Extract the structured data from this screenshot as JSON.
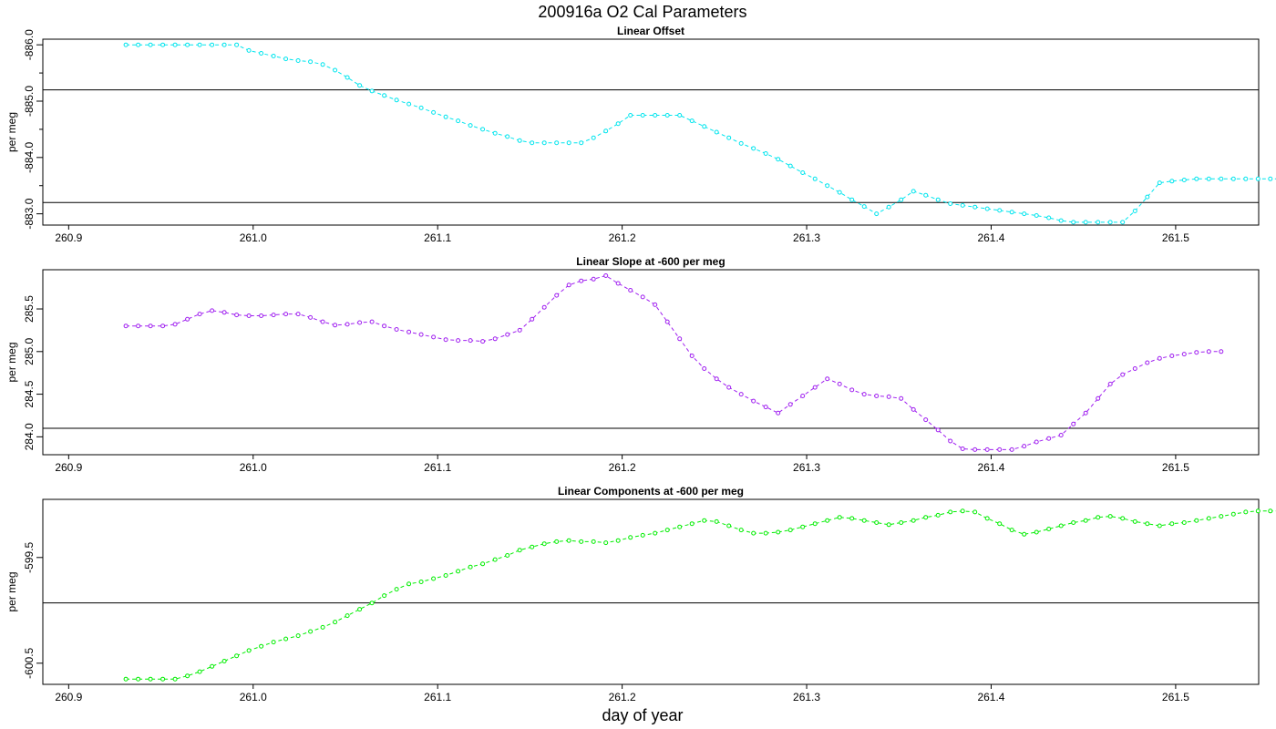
{
  "title": "200916a   O2 Cal Parameters",
  "xlabel": "day of year",
  "x_ticks": [
    "260.9",
    "261.0",
    "261.1",
    "261.2",
    "261.3",
    "261.4",
    "261.5"
  ],
  "chart_data": [
    {
      "type": "line",
      "title": "Linear Offset",
      "ylabel": "per meg",
      "color": "#00e5ee",
      "y_orientation": "inverted",
      "xlim": [
        260.886,
        261.545
      ],
      "ylim": [
        -886.1,
        -882.8
      ],
      "y_ticks": [
        -883.0,
        -884.0,
        -885.0,
        -886.0
      ],
      "y_tick_labels": [
        "-883.0",
        "-884.0",
        "-885.0",
        "-886.0"
      ],
      "reference_lines": [
        -883.2,
        -885.2
      ],
      "x_start": 260.931,
      "x_step": 0.00667,
      "values": [
        -886.0,
        -886.0,
        -886.0,
        -886.0,
        -886.0,
        -886.0,
        -886.0,
        -886.0,
        -886.0,
        -886.0,
        -885.9,
        -885.85,
        -885.8,
        -885.75,
        -885.72,
        -885.7,
        -885.65,
        -885.55,
        -885.42,
        -885.28,
        -885.18,
        -885.1,
        -885.02,
        -884.95,
        -884.88,
        -884.8,
        -884.72,
        -884.65,
        -884.57,
        -884.5,
        -884.43,
        -884.37,
        -884.3,
        -884.26,
        -884.26,
        -884.26,
        -884.26,
        -884.26,
        -884.35,
        -884.47,
        -884.6,
        -884.75,
        -884.75,
        -884.75,
        -884.75,
        -884.75,
        -884.65,
        -884.55,
        -884.45,
        -884.35,
        -884.25,
        -884.16,
        -884.07,
        -883.97,
        -883.85,
        -883.73,
        -883.62,
        -883.5,
        -883.38,
        -883.25,
        -883.13,
        -883.0,
        -883.12,
        -883.25,
        -883.4,
        -883.33,
        -883.25,
        -883.18,
        -883.15,
        -883.12,
        -883.09,
        -883.06,
        -883.03,
        -883.0,
        -882.97,
        -882.93,
        -882.88,
        -882.85,
        -882.85,
        -882.85,
        -882.85,
        -882.85,
        -883.05,
        -883.3,
        -883.55,
        -883.58,
        -883.6,
        -883.62,
        -883.62,
        -883.62,
        -883.62,
        -883.62,
        -883.62,
        -883.62,
        -883.62
      ]
    },
    {
      "type": "line",
      "title": "Linear Slope at -600 per meg",
      "ylabel": "per meg",
      "color": "#a020f0",
      "xlim": [
        260.886,
        261.545
      ],
      "ylim": [
        283.79,
        285.96
      ],
      "y_ticks": [
        284.0,
        284.5,
        285.0,
        285.5
      ],
      "y_tick_labels": [
        "284.0",
        "284.5",
        "285.0",
        "285.5"
      ],
      "reference_lines": [
        284.1
      ],
      "x_start": 260.931,
      "x_step": 0.00667,
      "values": [
        285.3,
        285.3,
        285.3,
        285.3,
        285.32,
        285.38,
        285.44,
        285.48,
        285.46,
        285.43,
        285.42,
        285.42,
        285.43,
        285.44,
        285.44,
        285.4,
        285.35,
        285.31,
        285.32,
        285.34,
        285.35,
        285.3,
        285.26,
        285.23,
        285.2,
        285.17,
        285.14,
        285.13,
        285.13,
        285.12,
        285.15,
        285.2,
        285.25,
        285.38,
        285.52,
        285.66,
        285.78,
        285.83,
        285.85,
        285.89,
        285.8,
        285.72,
        285.64,
        285.55,
        285.35,
        285.15,
        284.95,
        284.8,
        284.68,
        284.58,
        284.5,
        284.42,
        284.35,
        284.28,
        284.38,
        284.48,
        284.58,
        284.68,
        284.62,
        284.55,
        284.5,
        284.48,
        284.47,
        284.45,
        284.32,
        284.2,
        284.08,
        283.95,
        283.86,
        283.85,
        283.85,
        283.85,
        283.85,
        283.89,
        283.94,
        283.98,
        284.02,
        284.15,
        284.28,
        284.45,
        284.62,
        284.73,
        284.8,
        284.87,
        284.92,
        284.95,
        284.97,
        284.99,
        285.0,
        285.0
      ]
    },
    {
      "type": "line",
      "title": "Linear Components at -600 per meg",
      "ylabel": "per meg",
      "color": "#00ee00",
      "xlim": [
        260.886,
        261.545
      ],
      "ylim": [
        -600.7,
        -598.95
      ],
      "y_ticks": [
        -599.5,
        -600.5
      ],
      "y_tick_labels": [
        "-599.5",
        "-600.5"
      ],
      "reference_lines": [
        -599.93
      ],
      "x_start": 260.931,
      "x_step": 0.00667,
      "values": [
        -600.65,
        -600.65,
        -600.65,
        -600.65,
        -600.65,
        -600.62,
        -600.58,
        -600.53,
        -600.48,
        -600.43,
        -600.38,
        -600.34,
        -600.3,
        -600.27,
        -600.24,
        -600.2,
        -600.16,
        -600.11,
        -600.05,
        -599.99,
        -599.93,
        -599.86,
        -599.8,
        -599.75,
        -599.73,
        -599.7,
        -599.67,
        -599.63,
        -599.59,
        -599.56,
        -599.52,
        -599.48,
        -599.43,
        -599.4,
        -599.37,
        -599.35,
        -599.34,
        -599.35,
        -599.35,
        -599.36,
        -599.34,
        -599.31,
        -599.29,
        -599.27,
        -599.24,
        -599.21,
        -599.18,
        -599.15,
        -599.16,
        -599.2,
        -599.24,
        -599.27,
        -599.27,
        -599.26,
        -599.24,
        -599.21,
        -599.18,
        -599.15,
        -599.12,
        -599.13,
        -599.15,
        -599.17,
        -599.19,
        -599.17,
        -599.15,
        -599.12,
        -599.1,
        -599.07,
        -599.06,
        -599.07,
        -599.13,
        -599.18,
        -599.24,
        -599.28,
        -599.26,
        -599.23,
        -599.2,
        -599.17,
        -599.15,
        -599.12,
        -599.11,
        -599.13,
        -599.16,
        -599.18,
        -599.2,
        -599.18,
        -599.17,
        -599.15,
        -599.13,
        -599.11,
        -599.09,
        -599.07,
        -599.06,
        -599.06,
        -599.06
      ]
    }
  ]
}
